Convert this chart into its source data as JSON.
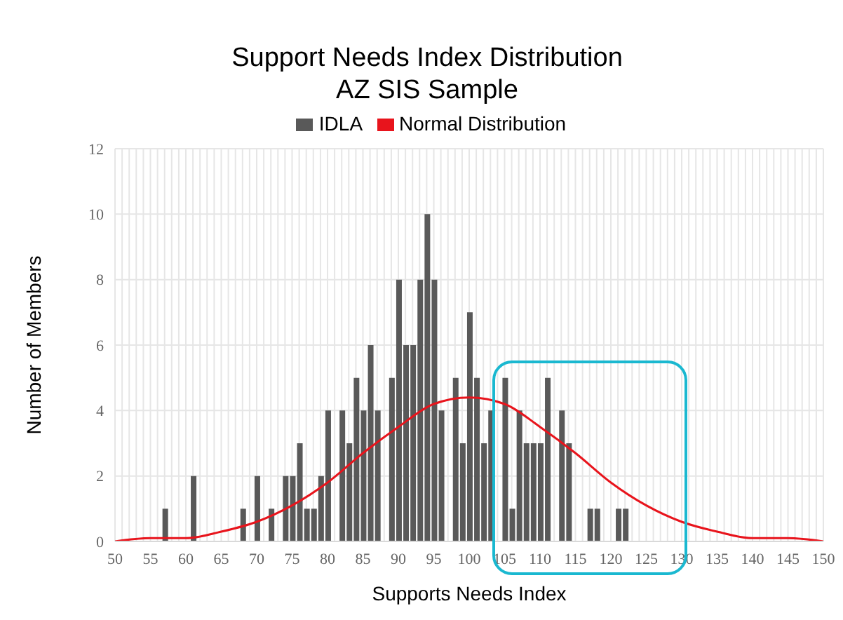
{
  "chart_data": {
    "type": "bar",
    "title": "Support Needs Index Distribution",
    "subtitle": "AZ SIS Sample",
    "xlabel": "Supports Needs Index",
    "ylabel": "Number of Members",
    "series": [
      {
        "name": "IDLA",
        "color": "#595959",
        "x": [
          57,
          61,
          68,
          70,
          72,
          74,
          75,
          76,
          77,
          78,
          79,
          80,
          82,
          83,
          84,
          85,
          86,
          87,
          89,
          90,
          91,
          92,
          93,
          94,
          95,
          96,
          98,
          99,
          100,
          101,
          102,
          103,
          105,
          106,
          107,
          108,
          109,
          110,
          111,
          113,
          114,
          117,
          118,
          121,
          122
        ],
        "values": [
          1,
          2,
          1,
          2,
          1,
          2,
          2,
          3,
          1,
          1,
          2,
          4,
          4,
          3,
          5,
          4,
          6,
          4,
          5,
          8,
          6,
          6,
          8,
          10,
          8,
          4,
          5,
          3,
          7,
          5,
          3,
          4,
          5,
          1,
          4,
          3,
          3,
          3,
          5,
          4,
          3,
          1,
          1,
          1,
          1
        ]
      },
      {
        "name": "Normal Distribution",
        "type": "line",
        "color": "#e8141c",
        "x": [
          50,
          55,
          60,
          65,
          70,
          75,
          80,
          85,
          90,
          95,
          100,
          105,
          110,
          115,
          120,
          125,
          130,
          135,
          140,
          145,
          150
        ],
        "values": [
          0,
          0.1,
          0.1,
          0.3,
          0.6,
          1.1,
          1.8,
          2.7,
          3.5,
          4.2,
          4.4,
          4.2,
          3.5,
          2.7,
          1.8,
          1.1,
          0.6,
          0.3,
          0.1,
          0.1,
          0
        ]
      }
    ],
    "xlim": [
      50,
      150
    ],
    "xticks": [
      50,
      55,
      60,
      65,
      70,
      75,
      80,
      85,
      90,
      95,
      100,
      105,
      110,
      115,
      120,
      125,
      130,
      135,
      140,
      145,
      150
    ],
    "ylim": [
      0,
      12
    ],
    "yticks": [
      0,
      2,
      4,
      6,
      8,
      10,
      12
    ],
    "grid": true,
    "legend": "top",
    "marker": "none",
    "line_style": "solid"
  }
}
